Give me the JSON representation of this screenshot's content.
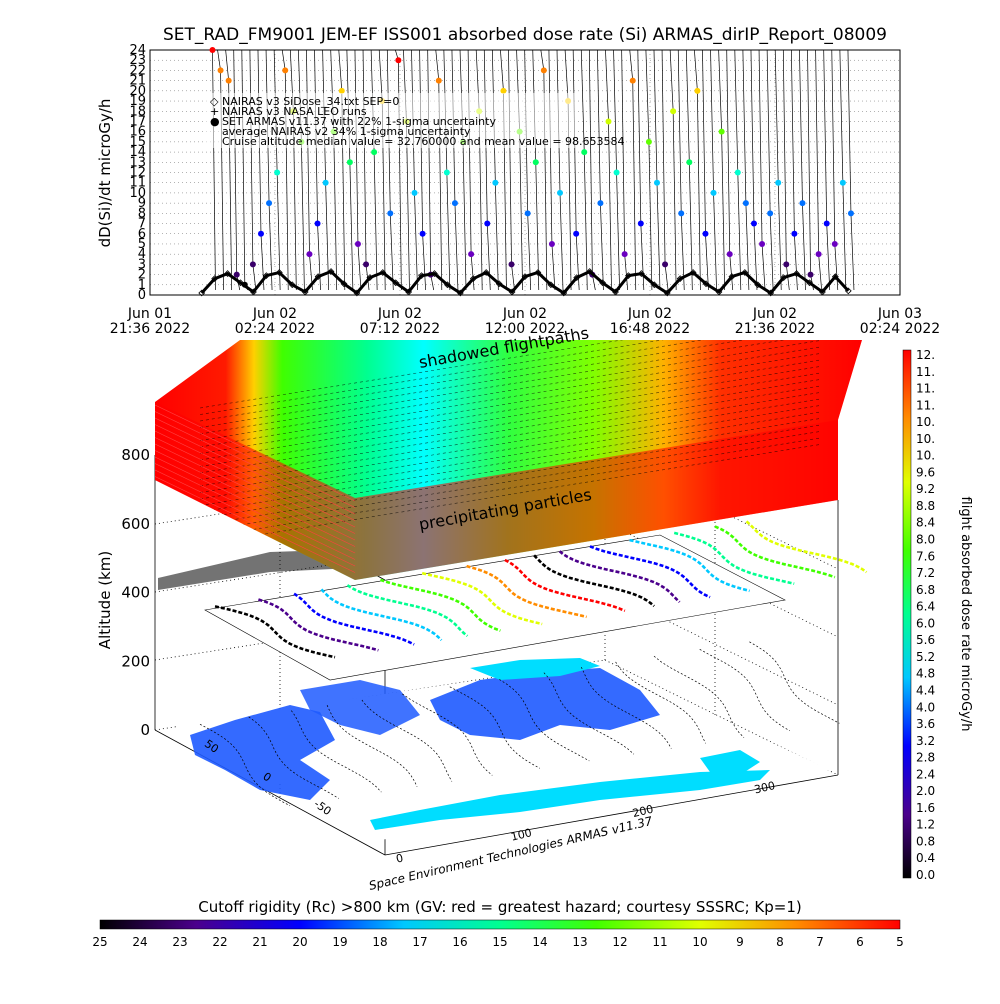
{
  "title": "SET_RAD_FM9001  JEM-EF ISS001 absorbed dose rate (Si) ARMAS_dirIP_Report_08009",
  "chart_data": [
    {
      "type": "line",
      "title": "SET_RAD_FM9001  JEM-EF ISS001 absorbed dose rate (Si) ARMAS_dirIP_Report_08009",
      "ylabel": "dD(Si)/dt microGy/h",
      "ylim": [
        0,
        24
      ],
      "y_ticks": [
        0,
        1,
        2,
        3,
        4,
        5,
        6,
        7,
        8,
        9,
        10,
        11,
        12,
        13,
        14,
        15,
        16,
        17,
        18,
        19,
        20,
        21,
        22,
        23,
        24
      ],
      "x_ticks": [
        {
          "line1": "Jun 01",
          "line2": "21:36 2022"
        },
        {
          "line1": "Jun 02",
          "line2": "02:24 2022"
        },
        {
          "line1": "Jun 02",
          "line2": "07:12 2022"
        },
        {
          "line1": "Jun 02",
          "line2": "12:00 2022"
        },
        {
          "line1": "Jun 02",
          "line2": "16:48 2022"
        },
        {
          "line1": "Jun 02",
          "line2": "21:36 2022"
        },
        {
          "line1": "Jun 03",
          "line2": "02:24 2022"
        }
      ],
      "legend": [
        {
          "symbol": "◇",
          "text": "NAIRAS v3 SiDose_34.txt SEP=0"
        },
        {
          "symbol": "+",
          "text": "NAIRAS v3 NASA LEO runs"
        },
        {
          "symbol": "●",
          "text": "SET ARMAS v11.37 with 22% 1-sigma uncertainty"
        },
        {
          "symbol": "",
          "text": "average NAIRAS v2 34% 1-sigma uncertainty"
        },
        {
          "symbol": "",
          "text": "Cruise altitude median value = 32.760000 and mean value = 98.653584"
        }
      ],
      "series": [
        {
          "name": "NAIRAS v3 SiDose_34.txt SEP=0",
          "x_hours_after_start": [
            0.0,
            0.5,
            1.0,
            1.5,
            2.0,
            2.5,
            3.0,
            3.5,
            4.0,
            4.5,
            5.0,
            5.5,
            6.0,
            6.5,
            7.0,
            7.5,
            8.0,
            8.5,
            9.0,
            9.5,
            10.0,
            10.5,
            11.0,
            11.5,
            12.0,
            12.5,
            13.0,
            13.5,
            14.0,
            14.5,
            15.0,
            15.5,
            16.0,
            16.5,
            17.0,
            17.5,
            18.0,
            18.5,
            19.0,
            19.5,
            20.0,
            20.5,
            21.0,
            21.5,
            22.0,
            22.5,
            23.0,
            23.5,
            24.0,
            24.5,
            25.0
          ],
          "values": [
            0.2,
            1.6,
            2.1,
            1.2,
            0.3,
            1.9,
            2.2,
            1.0,
            0.3,
            1.8,
            2.3,
            1.1,
            0.2,
            1.7,
            2.2,
            1.2,
            0.3,
            1.9,
            2.1,
            1.0,
            0.2,
            1.6,
            2.2,
            1.1,
            0.3,
            1.8,
            2.2,
            1.0,
            0.2,
            1.7,
            2.3,
            1.2,
            0.3,
            1.9,
            2.1,
            1.0,
            0.2,
            1.6,
            2.2,
            1.1,
            0.3,
            1.8,
            2.2,
            1.0,
            0.2,
            1.7,
            2.1,
            1.2,
            0.3,
            1.8,
            0.4
          ]
        }
      ],
      "armas_points": {
        "name": "SET ARMAS v11.37 with 22% 1-sigma uncertainty",
        "values_microGy_h": [
          24,
          22,
          21,
          2,
          1,
          3,
          6,
          9,
          12,
          22,
          18,
          15,
          4,
          7,
          11,
          16,
          20,
          13,
          5,
          3,
          14,
          19,
          8,
          23,
          17,
          10,
          6,
          2,
          21,
          12,
          9,
          15,
          4,
          18,
          7,
          11,
          20,
          3,
          16,
          8,
          13,
          22,
          5,
          10,
          19,
          6,
          14,
          2,
          9,
          17,
          12,
          4,
          21,
          7,
          15,
          11,
          3,
          18,
          8,
          13,
          20,
          6,
          10,
          16,
          4,
          12,
          9,
          7,
          5,
          8,
          11,
          3,
          6,
          9,
          2,
          4,
          7,
          5,
          11,
          8
        ]
      }
    },
    {
      "type": "scatter",
      "subtype": "3d-orbit-dose",
      "zlabel": "Altitude (km)",
      "z_ticks": [
        0,
        200,
        400,
        600,
        800
      ],
      "longitude_ticks": [
        0,
        100,
        200,
        300
      ],
      "latitude_ticks": [
        -50,
        0,
        50
      ],
      "annotations": [
        "shadowed flightpaths",
        "precipitating particles",
        "Space Environment Technologies ARMAS v11.37"
      ],
      "colorbar": {
        "label": "flight absorbed dose rate microGy/h",
        "ticks": [
          "12.",
          "11.",
          "11.",
          "11.",
          "10.",
          "10.",
          "10.",
          "9.6",
          "9.2",
          "8.8",
          "8.4",
          "8.0",
          "7.6",
          "7.2",
          "6.8",
          "6.4",
          "6.0",
          "5.6",
          "5.2",
          "4.8",
          "4.4",
          "4.0",
          "3.6",
          "3.2",
          "2.8",
          "2.4",
          "2.0",
          "1.6",
          "1.2",
          "0.8",
          "0.4",
          "0.0"
        ]
      }
    },
    {
      "type": "heatmap",
      "subtype": "colorbar",
      "title": "Cutoff rigidity (Rc) >800 km (GV: red = greatest hazard; courtesy SSSRC; Kp=1)",
      "ticks": [
        "25",
        "24",
        "23",
        "22",
        "21",
        "20",
        "19",
        "18",
        "17",
        "16",
        "15",
        "14",
        "13",
        "12",
        "11",
        "10",
        "9",
        "8",
        "7",
        "6",
        "5"
      ]
    }
  ],
  "colors": {
    "scale": [
      "#000000",
      "#3a006a",
      "#6a00c0",
      "#0000ff",
      "#0070ff",
      "#00c8ff",
      "#00ffd0",
      "#00ff60",
      "#60ff00",
      "#d0ff00",
      "#ffd000",
      "#ff8000",
      "#ff0000"
    ],
    "land": "#1e5aff",
    "ocean_accent": "#00e0ff"
  }
}
